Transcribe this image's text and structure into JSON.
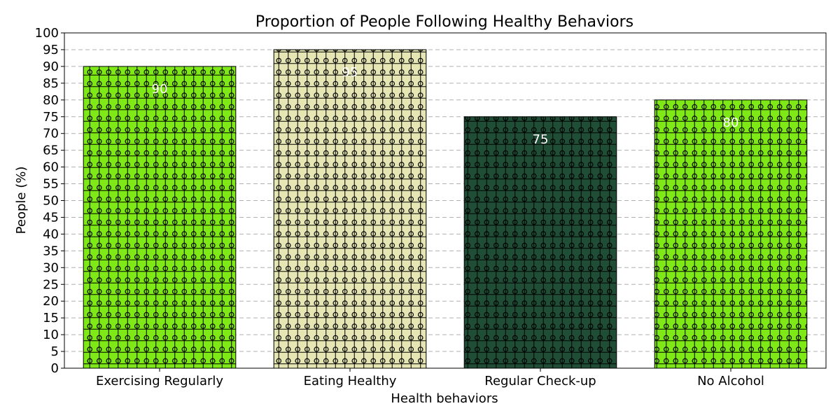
{
  "chart_data": {
    "type": "bar",
    "title": "Proportion of People Following Healthy Behaviors",
    "xlabel": "Health behaviors",
    "ylabel": "People (%)",
    "categories": [
      "Exercising Regularly",
      "Eating Healthy",
      "Regular Check-up",
      "No Alcohol"
    ],
    "values": [
      90,
      95,
      75,
      80
    ],
    "value_labels": [
      "90",
      "95",
      "75",
      "80"
    ],
    "bar_colors": [
      "#7fe817",
      "#e6e6b4",
      "#1f4d36",
      "#7fe817"
    ],
    "hatch": "o-grid",
    "ylim": [
      0,
      100
    ],
    "yticks": [
      "0",
      "5",
      "10",
      "15",
      "20",
      "25",
      "30",
      "35",
      "40",
      "45",
      "50",
      "55",
      "60",
      "65",
      "70",
      "75",
      "80",
      "85",
      "90",
      "95",
      "100"
    ],
    "grid": "horizontal-dashed",
    "legend": "none"
  }
}
